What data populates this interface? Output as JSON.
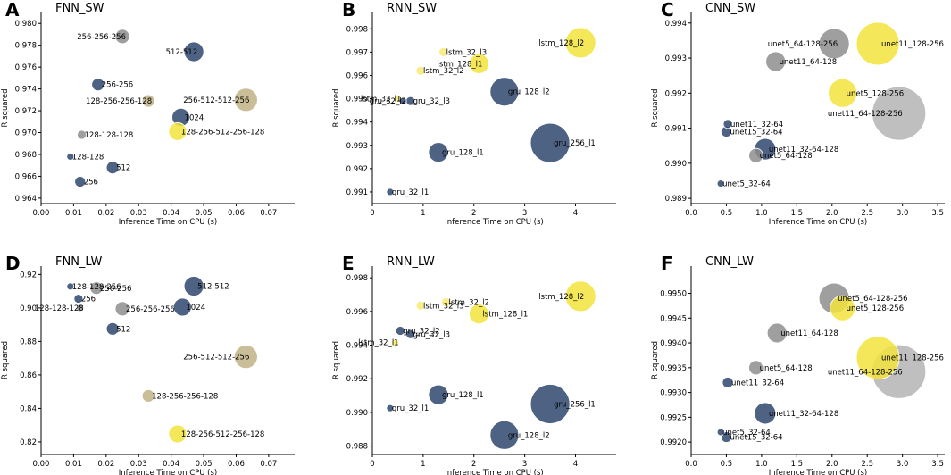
{
  "colors": {
    "navy": "#2f466f",
    "grey": "#8e8e8e",
    "olive": "#bfb385",
    "yellow": "#f2e43d",
    "light_yellow": "#f7ea74",
    "light_grey": "#b4b4b4"
  },
  "chart_data": [
    {
      "type": "scatter",
      "letter": "A",
      "title": "FNN_SW",
      "xlabel": "Inference Time on CPU (s)",
      "ylabel": "R squared",
      "xlim": [
        0,
        0.078
      ],
      "ylim": [
        0.9635,
        0.981
      ],
      "xticks": [
        "0.00",
        "0.01",
        "0.02",
        "0.03",
        "0.04",
        "0.05",
        "0.06",
        "0.07"
      ],
      "xtick_vals": [
        0,
        0.01,
        0.02,
        0.03,
        0.04,
        0.05,
        0.06,
        0.07
      ],
      "yticks": [
        "0.964",
        "0.966",
        "0.968",
        "0.970",
        "0.972",
        "0.974",
        "0.976",
        "0.978",
        "0.980"
      ],
      "ytick_vals": [
        0.964,
        0.966,
        0.968,
        0.97,
        0.972,
        0.974,
        0.976,
        0.978,
        0.98
      ],
      "points": [
        {
          "label": "256-256-256",
          "x": 0.025,
          "y": 0.9788,
          "size": 8,
          "color": "grey",
          "anchor": "end"
        },
        {
          "label": "512-512",
          "x": 0.047,
          "y": 0.9774,
          "size": 11,
          "color": "navy",
          "anchor": "end"
        },
        {
          "label": "256-256",
          "x": 0.0175,
          "y": 0.9744,
          "size": 7,
          "color": "navy"
        },
        {
          "label": "128-256-256-128",
          "x": 0.033,
          "y": 0.9729,
          "size": 7,
          "color": "olive",
          "anchor": "end"
        },
        {
          "label": "256-512-512-256",
          "x": 0.063,
          "y": 0.973,
          "size": 13,
          "color": "olive",
          "anchor": "end"
        },
        {
          "label": "1024",
          "x": 0.043,
          "y": 0.9714,
          "size": 10,
          "color": "navy"
        },
        {
          "label": "128-256-512-256-128",
          "x": 0.042,
          "y": 0.9701,
          "size": 10,
          "color": "yellow"
        },
        {
          "label": "128-128-128",
          "x": 0.0125,
          "y": 0.9698,
          "size": 5,
          "color": "grey"
        },
        {
          "label": "128-128",
          "x": 0.009,
          "y": 0.9678,
          "size": 4,
          "color": "navy"
        },
        {
          "label": "512",
          "x": 0.022,
          "y": 0.9668,
          "size": 7,
          "color": "navy"
        },
        {
          "label": "256",
          "x": 0.012,
          "y": 0.9655,
          "size": 6,
          "color": "navy"
        }
      ]
    },
    {
      "type": "scatter",
      "letter": "B",
      "title": "RNN_SW",
      "xlabel": "Inference Time on CPU (s)",
      "ylabel": "R squared",
      "xlim": [
        0,
        4.8
      ],
      "ylim": [
        0.9905,
        0.9987
      ],
      "xticks": [
        "0",
        "1",
        "2",
        "3",
        "4"
      ],
      "xtick_vals": [
        0,
        1,
        2,
        3,
        4
      ],
      "yticks": [
        "0.991",
        "0.992",
        "0.993",
        "0.994",
        "0.995",
        "0.996",
        "0.997",
        "0.998"
      ],
      "ytick_vals": [
        0.991,
        0.992,
        0.993,
        0.994,
        0.995,
        0.996,
        0.997,
        0.998
      ],
      "points": [
        {
          "label": "lstm_128_l2",
          "x": 4.1,
          "y": 0.9974,
          "size": 17,
          "color": "yellow",
          "anchor": "end"
        },
        {
          "label": "lstm_32_l3",
          "x": 1.4,
          "y": 0.997,
          "size": 5,
          "color": "light_yellow"
        },
        {
          "label": "lstm_128_l1",
          "x": 2.1,
          "y": 0.9965,
          "size": 11,
          "color": "yellow",
          "anchor": "end"
        },
        {
          "label": "lstm_32_l2",
          "x": 0.95,
          "y": 0.9962,
          "size": 5,
          "color": "light_yellow"
        },
        {
          "label": "lstm_32_l1",
          "x": 0.5,
          "y": 0.995,
          "size": 4,
          "color": "light_yellow",
          "anchor": "end"
        },
        {
          "label": "gru_128_l2",
          "x": 2.6,
          "y": 0.9953,
          "size": 16,
          "color": "navy"
        },
        {
          "label": "gru_32_l2",
          "x": 0.6,
          "y": 0.9949,
          "size": 4,
          "color": "navy",
          "anchor": "end"
        },
        {
          "label": "gru_32_l3",
          "x": 0.75,
          "y": 0.9949,
          "size": 5,
          "color": "navy"
        },
        {
          "label": "gru_256_l1",
          "x": 3.5,
          "y": 0.9931,
          "size": 22,
          "color": "navy"
        },
        {
          "label": "gru_128_l1",
          "x": 1.3,
          "y": 0.9927,
          "size": 11,
          "color": "navy"
        },
        {
          "label": "gru_32_l1",
          "x": 0.35,
          "y": 0.991,
          "size": 4,
          "color": "navy"
        }
      ]
    },
    {
      "type": "scatter",
      "letter": "C",
      "title": "CNN_SW",
      "xlabel": "Inference Time on CPU (s)",
      "ylabel": "R squared",
      "xlim": [
        0,
        3.6
      ],
      "ylim": [
        0.98885,
        0.9943
      ],
      "xticks": [
        "0.0",
        "0.5",
        "1.0",
        "1.5",
        "2.0",
        "2.5",
        "3.0",
        "3.5"
      ],
      "xtick_vals": [
        0,
        0.5,
        1.0,
        1.5,
        2.0,
        2.5,
        3.0,
        3.5
      ],
      "yticks": [
        "0.989",
        "0.990",
        "0.991",
        "0.992",
        "0.993",
        "0.994"
      ],
      "ytick_vals": [
        0.989,
        0.99,
        0.991,
        0.992,
        0.993,
        0.994
      ],
      "points": [
        {
          "label": "unet5_64-128-256",
          "x": 2.03,
          "y": 0.99341,
          "size": 17,
          "color": "grey",
          "anchor": "end"
        },
        {
          "label": "unet11_128-256",
          "x": 2.65,
          "y": 0.99341,
          "size": 24,
          "color": "yellow"
        },
        {
          "label": "unet11_64-128",
          "x": 1.2,
          "y": 0.9929,
          "size": 11,
          "color": "grey"
        },
        {
          "label": "unet5_128-256",
          "x": 2.15,
          "y": 0.992,
          "size": 16,
          "color": "yellow"
        },
        {
          "label": "unet11_64-128-256",
          "x": 2.95,
          "y": 0.99142,
          "size": 30,
          "color": "light_grey",
          "anchor": "end"
        },
        {
          "label": "unet11_32-64",
          "x": 0.52,
          "y": 0.99112,
          "size": 5,
          "color": "navy"
        },
        {
          "label": "unet15_32-64",
          "x": 0.5,
          "y": 0.9909,
          "size": 6,
          "color": "navy"
        },
        {
          "label": "unet11_32-64-128",
          "x": 1.05,
          "y": 0.9904,
          "size": 12,
          "color": "navy"
        },
        {
          "label": "unet5_64-128",
          "x": 0.92,
          "y": 0.99022,
          "size": 8,
          "color": "grey"
        },
        {
          "label": "unet5_32-64",
          "x": 0.42,
          "y": 0.98942,
          "size": 4,
          "color": "navy"
        }
      ]
    },
    {
      "type": "scatter",
      "letter": "D",
      "title": "FNN_LW",
      "xlabel": "Inference Time on CPU (s)",
      "ylabel": "R squared",
      "xlim": [
        0,
        0.078
      ],
      "ylim": [
        0.8125,
        0.925
      ],
      "xticks": [
        "0.00",
        "0.01",
        "0.02",
        "0.03",
        "0.04",
        "0.05",
        "0.06",
        "0.07"
      ],
      "xtick_vals": [
        0,
        0.01,
        0.02,
        0.03,
        0.04,
        0.05,
        0.06,
        0.07
      ],
      "yticks": [
        "0.82",
        "0.84",
        "0.86",
        "0.88",
        "0.90",
        "0.92"
      ],
      "ytick_vals": [
        0.82,
        0.84,
        0.86,
        0.88,
        0.9,
        0.92
      ],
      "points": [
        {
          "label": "128-128-256",
          "x": 0.009,
          "y": 0.9128,
          "size": 4,
          "color": "navy"
        },
        {
          "label": "256-256",
          "x": 0.017,
          "y": 0.9118,
          "size": 7,
          "color": "grey"
        },
        {
          "label": "512-512",
          "x": 0.047,
          "y": 0.913,
          "size": 11,
          "color": "navy"
        },
        {
          "label": "256",
          "x": 0.0115,
          "y": 0.9055,
          "size": 5,
          "color": "navy"
        },
        {
          "label": "128-128-128",
          "x": 0.012,
          "y": 0.9,
          "size": 4,
          "color": "grey",
          "anchor": "end"
        },
        {
          "label": "256-256-256",
          "x": 0.025,
          "y": 0.8995,
          "size": 8,
          "color": "grey"
        },
        {
          "label": "1024",
          "x": 0.0435,
          "y": 0.9005,
          "size": 10,
          "color": "navy"
        },
        {
          "label": "512",
          "x": 0.022,
          "y": 0.8875,
          "size": 7,
          "color": "navy"
        },
        {
          "label": "256-512-512-256",
          "x": 0.063,
          "y": 0.8708,
          "size": 13,
          "color": "olive",
          "anchor": "end"
        },
        {
          "label": "128-256-256-128",
          "x": 0.033,
          "y": 0.8475,
          "size": 7,
          "color": "olive"
        },
        {
          "label": "128-256-512-256-128",
          "x": 0.042,
          "y": 0.8248,
          "size": 10,
          "color": "yellow"
        }
      ]
    },
    {
      "type": "scatter",
      "letter": "E",
      "title": "RNN_LW",
      "xlabel": "Inference Time on CPU (s)",
      "ylabel": "R squared",
      "xlim": [
        0,
        4.8
      ],
      "ylim": [
        0.9875,
        0.9987
      ],
      "xticks": [
        "0",
        "1",
        "2",
        "3",
        "4"
      ],
      "xtick_vals": [
        0,
        1,
        2,
        3,
        4
      ],
      "yticks": [
        "0.988",
        "0.990",
        "0.992",
        "0.994",
        "0.996",
        "0.998"
      ],
      "ytick_vals": [
        0.988,
        0.99,
        0.992,
        0.994,
        0.996,
        0.998
      ],
      "points": [
        {
          "label": "lstm_128_l2",
          "x": 4.1,
          "y": 0.9969,
          "size": 17,
          "color": "yellow",
          "anchor": "end"
        },
        {
          "label": "lstm_32_l2",
          "x": 1.45,
          "y": 0.99655,
          "size": 5,
          "color": "light_yellow"
        },
        {
          "label": "lstm_32_l3",
          "x": 0.95,
          "y": 0.99635,
          "size": 5,
          "color": "light_yellow"
        },
        {
          "label": "lstm_128_l1",
          "x": 2.1,
          "y": 0.99585,
          "size": 11,
          "color": "yellow"
        },
        {
          "label": "gru_32_l2",
          "x": 0.55,
          "y": 0.99485,
          "size": 5,
          "color": "navy"
        },
        {
          "label": "gru_32_l3",
          "x": 0.75,
          "y": 0.99465,
          "size": 5,
          "color": "navy"
        },
        {
          "label": "lstm_32_l1",
          "x": 0.45,
          "y": 0.99415,
          "size": 4,
          "color": "light_yellow",
          "anchor": "end"
        },
        {
          "label": "gru_128_l1",
          "x": 1.3,
          "y": 0.99105,
          "size": 11,
          "color": "navy"
        },
        {
          "label": "gru_256_l1",
          "x": 3.5,
          "y": 0.9905,
          "size": 22,
          "color": "navy"
        },
        {
          "label": "gru_32_l1",
          "x": 0.35,
          "y": 0.99025,
          "size": 4,
          "color": "navy"
        },
        {
          "label": "gru_128_l2",
          "x": 2.6,
          "y": 0.98865,
          "size": 16,
          "color": "navy"
        }
      ]
    },
    {
      "type": "scatter",
      "letter": "F",
      "title": "CNN_LW",
      "xlabel": "Inference Time on CPU (s)",
      "ylabel": "R squared",
      "xlim": [
        0,
        3.6
      ],
      "ylim": [
        0.99175,
        0.99555
      ],
      "xticks": [
        "0.0",
        "0.5",
        "1.0",
        "1.5",
        "2.0",
        "2.5",
        "3.0",
        "3.5"
      ],
      "xtick_vals": [
        0,
        0.5,
        1.0,
        1.5,
        2.0,
        2.5,
        3.0,
        3.5
      ],
      "yticks": [
        "0.9920",
        "0.9925",
        "0.9930",
        "0.9935",
        "0.9940",
        "0.9945",
        "0.9950"
      ],
      "ytick_vals": [
        0.992,
        0.9925,
        0.993,
        0.9935,
        0.994,
        0.9945,
        0.995
      ],
      "points": [
        {
          "label": "unet5_64-128-256",
          "x": 2.03,
          "y": 0.9949,
          "size": 17,
          "color": "grey"
        },
        {
          "label": "unet5_128-256",
          "x": 2.15,
          "y": 0.9947,
          "size": 14,
          "color": "yellow"
        },
        {
          "label": "unet11_64-128",
          "x": 1.22,
          "y": 0.9942,
          "size": 11,
          "color": "grey"
        },
        {
          "label": "unet11_128-256",
          "x": 2.65,
          "y": 0.9937,
          "size": 24,
          "color": "yellow"
        },
        {
          "label": "unet11_64-128-256",
          "x": 2.95,
          "y": 0.99342,
          "size": 30,
          "color": "light_grey",
          "anchor": "end"
        },
        {
          "label": "unet5_64-128",
          "x": 0.92,
          "y": 0.9935,
          "size": 8,
          "color": "grey"
        },
        {
          "label": "unet11_32-64",
          "x": 0.52,
          "y": 0.9932,
          "size": 6,
          "color": "navy"
        },
        {
          "label": "unet11_32-64-128",
          "x": 1.05,
          "y": 0.99258,
          "size": 12,
          "color": "navy"
        },
        {
          "label": "unet5_32-64",
          "x": 0.42,
          "y": 0.9922,
          "size": 4,
          "color": "navy"
        },
        {
          "label": "unet15_32-64",
          "x": 0.5,
          "y": 0.9921,
          "size": 6,
          "color": "navy"
        }
      ]
    }
  ]
}
